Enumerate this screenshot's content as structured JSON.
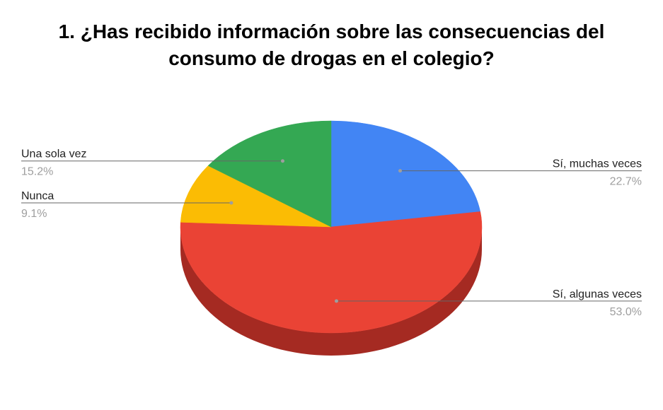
{
  "chart_data": {
    "type": "pie",
    "style": "3d",
    "title_lines": [
      "1. ¿Has recibido información sobre las consecuencias del",
      "consumo de drogas en el colegio?"
    ],
    "slices": [
      {
        "label": "Sí, muchas veces",
        "value": 22.7,
        "value_label": "22.7%",
        "color": "#4285f4",
        "side_color": "#2f67c2"
      },
      {
        "label": "Sí, algunas veces",
        "value": 53.0,
        "value_label": "53.0%",
        "color": "#ea4335",
        "side_color": "#a52a22"
      },
      {
        "label": "Nunca",
        "value": 9.1,
        "value_label": "9.1%",
        "color": "#fbbc04",
        "side_color": "#b58600"
      },
      {
        "label": "Una sola vez",
        "value": 15.2,
        "value_label": "15.2%",
        "color": "#34a853",
        "side_color": "#23783a"
      }
    ],
    "legend": "labels-with-leader-lines"
  }
}
